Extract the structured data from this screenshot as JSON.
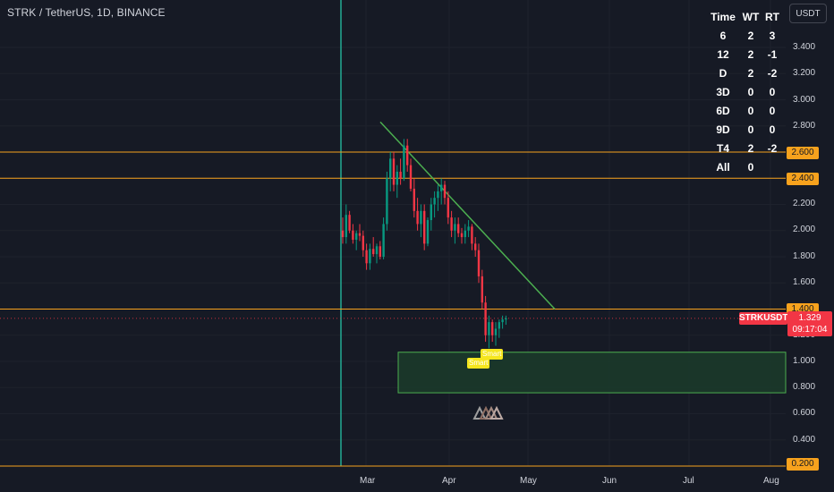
{
  "header": {
    "symbol_title": "STRK / TetherUS, 1D, BINANCE"
  },
  "currency_button": {
    "label": "USDT"
  },
  "stats_table": {
    "headers": [
      "Time",
      "WT",
      "RT"
    ],
    "rows": [
      [
        "6",
        "2",
        "3"
      ],
      [
        "12",
        "2",
        "-1"
      ],
      [
        "D",
        "2",
        "-2"
      ],
      [
        "3D",
        "0",
        "0"
      ],
      [
        "6D",
        "0",
        "0"
      ],
      [
        "9D",
        "0",
        "0"
      ],
      [
        "T4",
        "2",
        "-2"
      ],
      [
        "All",
        "0",
        ""
      ]
    ]
  },
  "price_axis": {
    "ticks": [
      "3.400",
      "3.200",
      "3.000",
      "2.800",
      "2.200",
      "2.000",
      "1.800",
      "1.600",
      "1.200",
      "1.000",
      "0.800",
      "0.600",
      "0.400"
    ],
    "highlighted_levels": [
      "2.600",
      "2.400",
      "1.400",
      "0.200"
    ]
  },
  "current_price": {
    "symbol": "STRKUSDT",
    "price": "1.329",
    "countdown": "09:17:04"
  },
  "time_axis": {
    "labels": [
      "Mar",
      "Apr",
      "May",
      "Jun",
      "Jul",
      "Aug"
    ]
  },
  "signals": {
    "label_1": "Smart",
    "label_2": "Smart"
  },
  "colors": {
    "background": "#161a25",
    "up_candle": "#089981",
    "down_candle": "#f23645",
    "horizontal_level": "#f7a21d",
    "trendline": "#4caf50",
    "zone_fill": "#1b3a2a",
    "zone_border": "#4caf50",
    "current_price": "#f23645",
    "signal": "#f5e61e",
    "listing_line": "#22ab94"
  },
  "chart_data": {
    "type": "candlestick",
    "y_axis": {
      "min": 0.2,
      "max": 3.4,
      "step": 0.2
    },
    "x_axis": {
      "labels": [
        "Mar",
        "Apr",
        "May",
        "Jun",
        "Jul",
        "Aug"
      ]
    },
    "horizontal_lines": [
      2.6,
      2.4,
      1.4,
      0.2
    ],
    "demand_zone": {
      "from": 0.76,
      "to": 1.07
    },
    "trendline": {
      "start_price": 2.83,
      "end_price": 1.4
    },
    "current_price": 1.329,
    "candles_ohlc": [
      [
        2.0,
        2.1,
        1.9,
        1.95
      ],
      [
        1.95,
        2.2,
        1.9,
        2.12
      ],
      [
        2.12,
        2.15,
        1.98,
        2.0
      ],
      [
        2.0,
        2.05,
        1.9,
        1.93
      ],
      [
        1.93,
        2.0,
        1.85,
        1.98
      ],
      [
        1.98,
        2.05,
        1.92,
        1.96
      ],
      [
        1.96,
        2.0,
        1.8,
        1.85
      ],
      [
        1.85,
        1.9,
        1.7,
        1.75
      ],
      [
        1.75,
        1.9,
        1.7,
        1.86
      ],
      [
        1.86,
        1.95,
        1.8,
        1.82
      ],
      [
        1.82,
        1.9,
        1.75,
        1.88
      ],
      [
        1.88,
        1.92,
        1.78,
        1.8
      ],
      [
        1.8,
        2.1,
        1.78,
        2.05
      ],
      [
        2.05,
        2.45,
        2.0,
        2.4
      ],
      [
        2.4,
        2.6,
        2.3,
        2.55
      ],
      [
        2.55,
        2.6,
        2.3,
        2.35
      ],
      [
        2.35,
        2.5,
        2.25,
        2.45
      ],
      [
        2.45,
        2.55,
        2.35,
        2.4
      ],
      [
        2.4,
        2.7,
        2.38,
        2.65
      ],
      [
        2.65,
        2.7,
        2.45,
        2.5
      ],
      [
        2.5,
        2.55,
        2.3,
        2.32
      ],
      [
        2.32,
        2.4,
        2.1,
        2.15
      ],
      [
        2.15,
        2.25,
        2.0,
        2.05
      ],
      [
        2.05,
        2.2,
        1.95,
        2.15
      ],
      [
        2.15,
        2.2,
        1.85,
        1.9
      ],
      [
        1.9,
        2.1,
        1.88,
        2.08
      ],
      [
        2.08,
        2.25,
        2.0,
        2.2
      ],
      [
        2.2,
        2.3,
        2.1,
        2.25
      ],
      [
        2.25,
        2.35,
        2.15,
        2.3
      ],
      [
        2.3,
        2.4,
        2.2,
        2.35
      ],
      [
        2.35,
        2.38,
        2.2,
        2.25
      ],
      [
        2.25,
        2.3,
        2.05,
        2.1
      ],
      [
        2.1,
        2.15,
        1.95,
        2.0
      ],
      [
        2.0,
        2.1,
        1.9,
        2.05
      ],
      [
        2.05,
        2.1,
        1.95,
        1.98
      ],
      [
        1.98,
        2.02,
        1.9,
        1.95
      ],
      [
        1.95,
        2.05,
        1.9,
        2.0
      ],
      [
        2.0,
        2.08,
        1.95,
        2.03
      ],
      [
        2.03,
        2.05,
        1.85,
        1.9
      ],
      [
        1.9,
        1.95,
        1.8,
        1.85
      ],
      [
        1.85,
        1.9,
        1.6,
        1.65
      ],
      [
        1.65,
        1.7,
        1.4,
        1.45
      ],
      [
        1.45,
        1.5,
        1.15,
        1.2
      ],
      [
        1.2,
        1.35,
        1.1,
        1.3
      ],
      [
        1.3,
        1.32,
        1.15,
        1.2
      ],
      [
        1.2,
        1.3,
        1.12,
        1.25
      ],
      [
        1.25,
        1.32,
        1.18,
        1.3
      ],
      [
        1.3,
        1.35,
        1.25,
        1.32
      ],
      [
        1.32,
        1.35,
        1.28,
        1.329
      ]
    ]
  }
}
